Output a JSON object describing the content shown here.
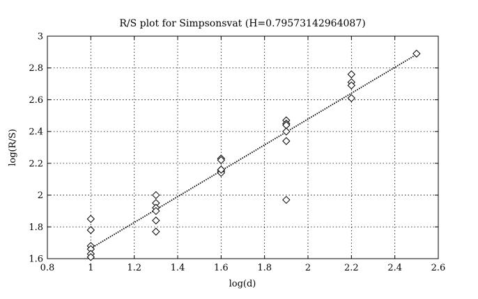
{
  "chart_data": {
    "type": "scatter",
    "title": "R/S plot for Simpsonsvat (H=0.79573142964087)",
    "xlabel": "log(d)",
    "ylabel": "log(R/S)",
    "xlim": [
      0.8,
      2.6
    ],
    "ylim": [
      1.6,
      3.0
    ],
    "xticks": [
      0.8,
      1.0,
      1.2,
      1.4,
      1.6,
      1.8,
      2.0,
      2.2,
      2.4,
      2.6
    ],
    "yticks": [
      1.6,
      1.8,
      2.0,
      2.2,
      2.4,
      2.6,
      2.8,
      3.0
    ],
    "xtick_labels": [
      "0.8",
      "1",
      "1.2",
      "1.4",
      "1.6",
      "1.8",
      "2",
      "2.2",
      "2.4",
      "2.6"
    ],
    "ytick_labels": [
      "1.6",
      "1.8",
      "2",
      "2.2",
      "2.4",
      "2.6",
      "2.8",
      "3"
    ],
    "grid": true,
    "marker": "diamond",
    "marker_color": "#000000",
    "series": [
      {
        "x": [
          1.0,
          1.0,
          1.0,
          1.0,
          1.0,
          1.0,
          1.3,
          1.3,
          1.3,
          1.3,
          1.3,
          1.3,
          1.6,
          1.6,
          1.6,
          1.6,
          1.6,
          1.6,
          1.9,
          1.9,
          1.9,
          1.9,
          1.9,
          1.9,
          2.2,
          2.2,
          2.2,
          2.2,
          2.5
        ],
        "y": [
          1.85,
          1.78,
          1.68,
          1.66,
          1.63,
          1.61,
          2.0,
          1.95,
          1.92,
          1.9,
          1.84,
          1.77,
          2.23,
          2.22,
          2.16,
          2.15,
          2.14,
          2.16,
          2.47,
          2.45,
          2.44,
          2.4,
          2.34,
          1.97,
          2.76,
          2.71,
          2.69,
          2.61,
          2.89
        ]
      }
    ],
    "fit_line": {
      "style": "dotted",
      "x": [
        1.0,
        2.5
      ],
      "y": [
        1.665,
        2.885
      ]
    }
  }
}
